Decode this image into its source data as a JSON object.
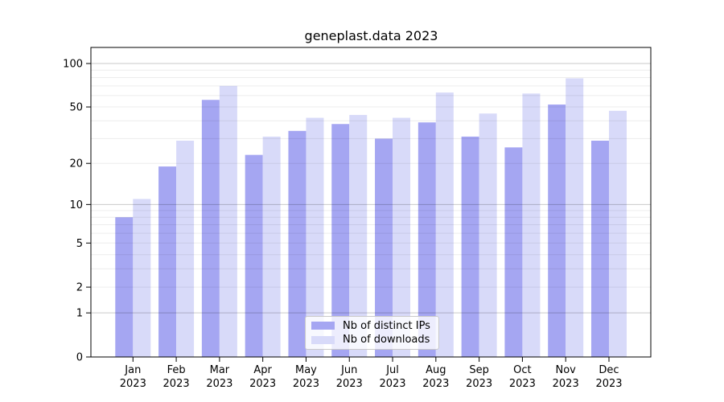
{
  "chart_data": {
    "type": "bar",
    "title": "geneplast.data 2023",
    "categories": [
      "Jan",
      "Feb",
      "Mar",
      "Apr",
      "May",
      "Jun",
      "Jul",
      "Aug",
      "Sep",
      "Oct",
      "Nov",
      "Dec"
    ],
    "category_year": "2023",
    "series": [
      {
        "name": "Nb of distinct IPs",
        "color": "#a5a6f2",
        "values": [
          8,
          19,
          56,
          23,
          34,
          38,
          30,
          39,
          31,
          26,
          52,
          29
        ]
      },
      {
        "name": "Nb of downloads",
        "color": "#d8daf9",
        "values": [
          11,
          29,
          70,
          31,
          42,
          44,
          42,
          63,
          45,
          62,
          79,
          47
        ]
      }
    ],
    "xlabel": "",
    "ylabel": "",
    "yscale": "log1p",
    "yticks": [
      0,
      1,
      2,
      5,
      10,
      20,
      50,
      100
    ],
    "ylim": [
      0,
      130
    ],
    "grid": {
      "major_lines": [
        1,
        10,
        100
      ],
      "minor_lines": [
        2,
        3,
        4,
        5,
        6,
        7,
        8,
        9,
        20,
        30,
        40,
        50,
        60,
        70,
        80,
        90
      ]
    },
    "legend_position": "bottom-center"
  },
  "colors": {
    "axis": "#000000",
    "text": "#000000",
    "grid_major": "rgba(0,0,0,0.21)",
    "grid_minor": "rgba(0,0,0,0.075)",
    "legend_border": "#c9c9c9",
    "legend_background": "rgba(255,255,255,0.8)"
  }
}
